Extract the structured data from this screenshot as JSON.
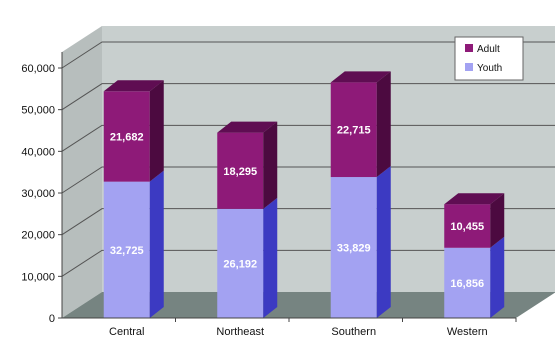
{
  "chart_data": {
    "type": "bar",
    "stacked": true,
    "categories": [
      "Central",
      "Northeast",
      "Southern",
      "Western"
    ],
    "series": [
      {
        "name": "Youth",
        "values": [
          32725,
          26192,
          33829,
          16856
        ],
        "color": "#a3a2f2"
      },
      {
        "name": "Adult",
        "values": [
          21682,
          18295,
          22715,
          10455
        ],
        "color": "#8e1a78"
      }
    ],
    "data_labels": {
      "Youth": [
        "32,725",
        "26,192",
        "33,829",
        "16,856"
      ],
      "Adult": [
        "21,682",
        "18,295",
        "22,715",
        "10,455"
      ]
    },
    "yticks": [
      "0",
      "10,000",
      "20,000",
      "30,000",
      "40,000",
      "50,000",
      "60,000"
    ],
    "ylim": [
      0,
      60000
    ],
    "grid": true,
    "legend_position": "top-right",
    "colors": {
      "back_wall": "#c8cfce",
      "floor": "#768481",
      "youth_side": "#3c3ac2",
      "adult_side": "#4c0a40",
      "adult_top": "#5f0d52"
    }
  }
}
